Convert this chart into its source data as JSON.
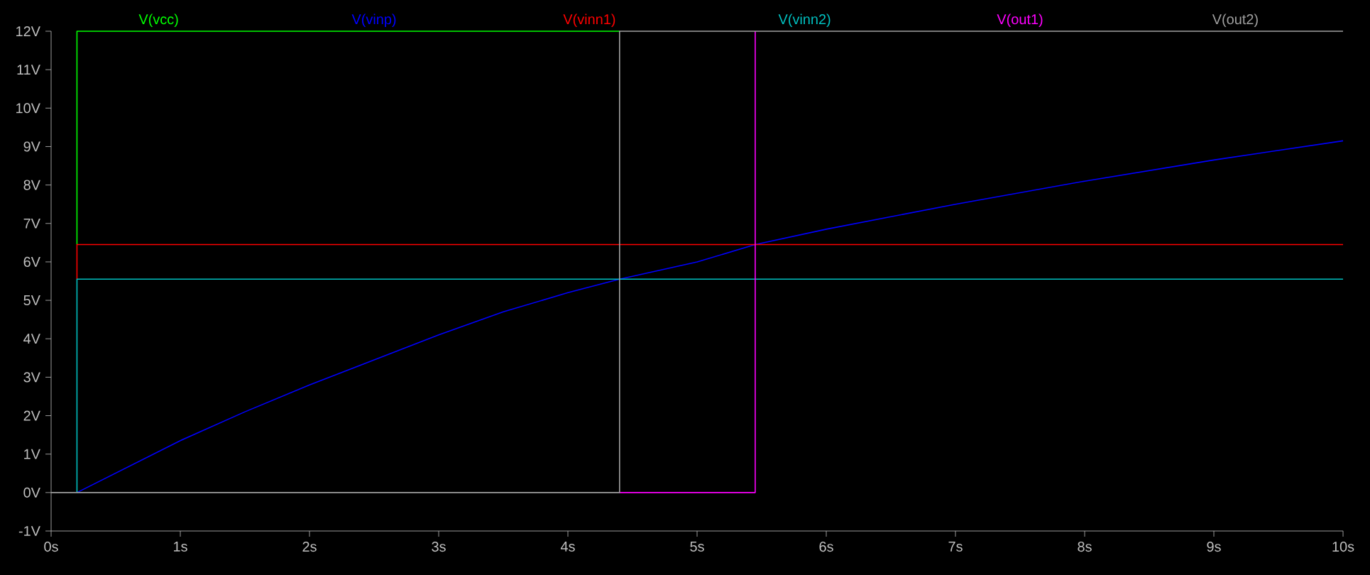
{
  "chart_data": {
    "type": "line",
    "legend": "top",
    "marker": "none",
    "xlim": [
      0,
      10
    ],
    "ylim": [
      -1,
      12
    ],
    "xticks": [
      {
        "value": 0,
        "label": "0s"
      },
      {
        "value": 1,
        "label": "1s"
      },
      {
        "value": 2,
        "label": "2s"
      },
      {
        "value": 3,
        "label": "3s"
      },
      {
        "value": 4,
        "label": "4s"
      },
      {
        "value": 5,
        "label": "5s"
      },
      {
        "value": 6,
        "label": "6s"
      },
      {
        "value": 7,
        "label": "7s"
      },
      {
        "value": 8,
        "label": "8s"
      },
      {
        "value": 9,
        "label": "9s"
      },
      {
        "value": 10,
        "label": "10s"
      }
    ],
    "yticks": [
      {
        "value": -1,
        "label": "-1V"
      },
      {
        "value": 0,
        "label": "0V"
      },
      {
        "value": 1,
        "label": "1V"
      },
      {
        "value": 2,
        "label": "2V"
      },
      {
        "value": 3,
        "label": "3V"
      },
      {
        "value": 4,
        "label": "4V"
      },
      {
        "value": 5,
        "label": "5V"
      },
      {
        "value": 6,
        "label": "6V"
      },
      {
        "value": 7,
        "label": "7V"
      },
      {
        "value": 8,
        "label": "8V"
      },
      {
        "value": 9,
        "label": "9V"
      },
      {
        "value": 10,
        "label": "10V"
      },
      {
        "value": 11,
        "label": "11V"
      },
      {
        "value": 12,
        "label": "12V"
      }
    ],
    "series": [
      {
        "name": "V(vcc)",
        "color": "#00ff00",
        "x": [
          0.2,
          0.2,
          4.4
        ],
        "values": [
          6.45,
          12,
          12
        ]
      },
      {
        "name": "V(vinp)",
        "color": "#0000ff",
        "x": [
          0.2,
          1,
          1.5,
          2,
          2.5,
          3,
          3.5,
          4,
          4.4,
          5,
          5.45,
          6,
          7,
          8,
          9,
          10
        ],
        "values": [
          0,
          1.35,
          2.1,
          2.8,
          3.45,
          4.1,
          4.7,
          5.2,
          5.55,
          6.0,
          6.45,
          6.85,
          7.5,
          8.1,
          8.65,
          9.15
        ]
      },
      {
        "name": "V(vinn1)",
        "color": "#ff0000",
        "x": [
          0.2,
          0.2,
          10
        ],
        "values": [
          5.55,
          6.45,
          6.45
        ]
      },
      {
        "name": "V(vinn2)",
        "color": "#00c0c0",
        "x": [
          0.2,
          0.2,
          10
        ],
        "values": [
          0,
          5.55,
          5.55
        ]
      },
      {
        "name": "V(out1)",
        "color": "#ff00ff",
        "x": [
          4.4,
          5.45,
          5.45
        ],
        "values": [
          0,
          0,
          12
        ]
      },
      {
        "name": "V(out2)",
        "color": "#a0a0a0",
        "x": [
          0,
          4.4,
          4.4,
          10
        ],
        "values": [
          0,
          0,
          12,
          12
        ]
      }
    ]
  }
}
